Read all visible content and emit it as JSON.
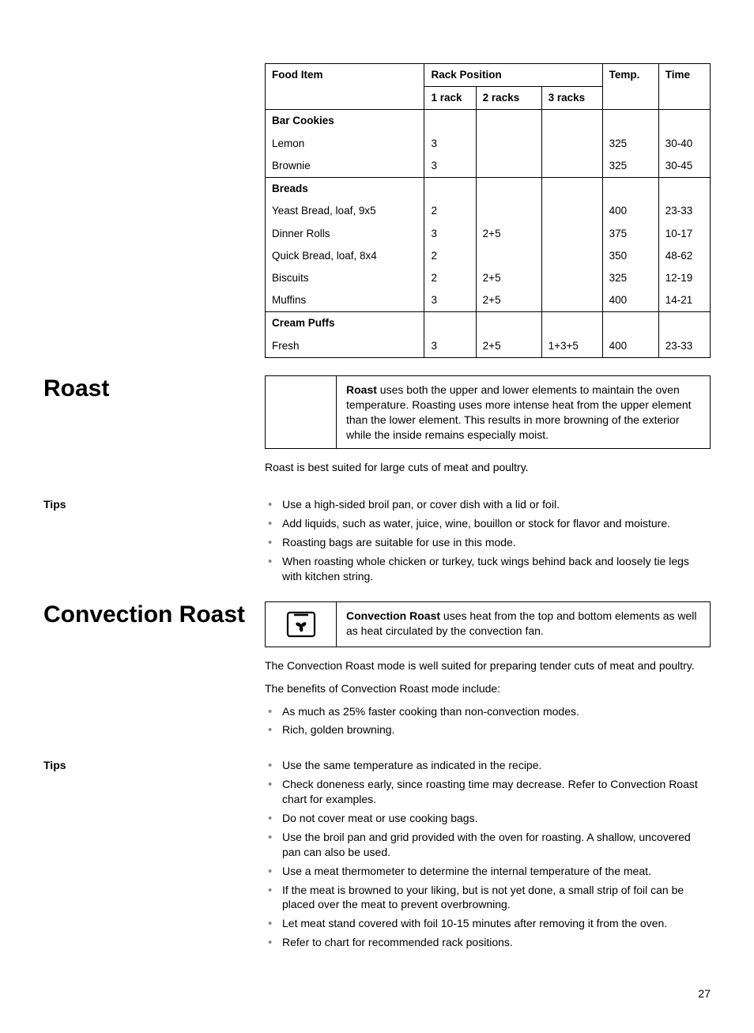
{
  "cooking_table": {
    "columns": {
      "food_item": "Food Item",
      "rack_position": "Rack Position",
      "one_rack": "1 rack",
      "two_racks": "2 racks",
      "three_racks": "3 racks",
      "temp": "Temp.",
      "time": "Time"
    },
    "groups": [
      {
        "header": "Bar Cookies",
        "rows": [
          {
            "item": "Lemon",
            "r1": "3",
            "r2": "",
            "r3": "",
            "temp": "325",
            "time": "30-40"
          },
          {
            "item": "Brownie",
            "r1": "3",
            "r2": "",
            "r3": "",
            "temp": "325",
            "time": "30-45"
          }
        ]
      },
      {
        "header": "Breads",
        "rows": [
          {
            "item": "Yeast Bread, loaf, 9x5",
            "r1": "2",
            "r2": "",
            "r3": "",
            "temp": "400",
            "time": "23-33"
          },
          {
            "item": "Dinner Rolls",
            "r1": "3",
            "r2": "2+5",
            "r3": "",
            "temp": "375",
            "time": "10-17"
          },
          {
            "item": "Quick Bread, loaf, 8x4",
            "r1": "2",
            "r2": "",
            "r3": "",
            "temp": "350",
            "time": "48-62"
          },
          {
            "item": "Biscuits",
            "r1": "2",
            "r2": "2+5",
            "r3": "",
            "temp": "325",
            "time": "12-19"
          },
          {
            "item": "Muffins",
            "r1": "3",
            "r2": "2+5",
            "r3": "",
            "temp": "400",
            "time": "14-21"
          }
        ]
      },
      {
        "header": "Cream Puffs",
        "rows": [
          {
            "item": "Fresh",
            "r1": "3",
            "r2": "2+5",
            "r3": "1+3+5",
            "temp": "400",
            "time": "23-33"
          }
        ]
      }
    ]
  },
  "roast": {
    "heading": "Roast",
    "box_bold": "Roast",
    "box_rest": " uses both the upper and lower elements to maintain the oven temperature. Roasting uses more intense heat from the upper element than the lower element. This results in more browning of the exterior while the inside remains especially moist.",
    "intro": "Roast is best suited for large cuts of meat and poultry.",
    "tips_label": "Tips",
    "tips": [
      "Use a high-sided broil pan, or cover dish with a lid or foil.",
      "Add liquids, such as water, juice, wine, bouillon or stock for flavor and moisture.",
      "Roasting bags are suitable for use in this mode.",
      "When roasting whole chicken or turkey, tuck wings behind back and loosely tie legs with kitchen string."
    ]
  },
  "conv_roast": {
    "heading": "Convection Roast",
    "box_bold": "Convection Roast",
    "box_rest": " uses heat from the top and bottom elements as well as heat circulated by the convection fan.",
    "intro1": "The Convection Roast mode is well suited for preparing tender cuts of meat and poultry.",
    "intro2": "The benefits of Convection Roast mode include:",
    "benefits": [
      "As much as 25% faster cooking than non-convection modes.",
      "Rich, golden browning."
    ],
    "tips_label": "Tips",
    "tips": [
      "Use the same temperature as indicated in the recipe.",
      "Check doneness early, since roasting time may decrease. Refer to Convection Roast chart for examples.",
      "Do not cover meat or use cooking bags.",
      "Use the broil pan and grid provided with the oven for roasting. A shallow, uncovered pan can also be used.",
      "Use a meat thermometer to determine the internal temperature of the meat.",
      "If the meat is browned to your liking, but is not yet done, a small strip of foil can be placed over the meat to prevent overbrowning.",
      "Let meat stand covered with foil 10-15 minutes after removing it from the oven.",
      "Refer to chart for recommended rack positions."
    ]
  },
  "page_number": "27"
}
